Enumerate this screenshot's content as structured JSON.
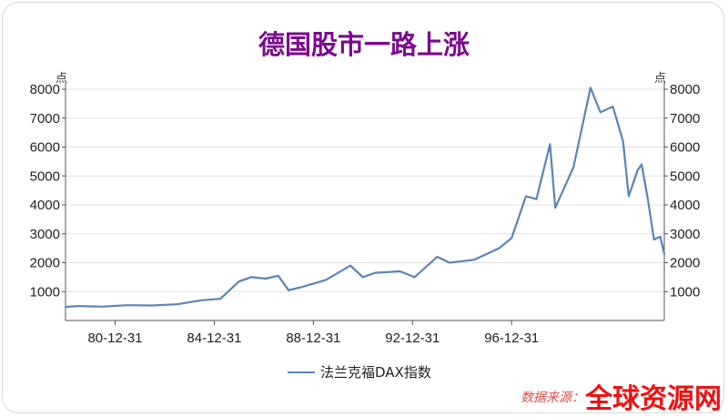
{
  "chart_data": {
    "type": "line",
    "title": "德国股市一路上涨",
    "y_unit_label": "点",
    "ylim": [
      0,
      8000
    ],
    "yticks": [
      1000,
      2000,
      3000,
      4000,
      5000,
      6000,
      7000,
      8000
    ],
    "xlim": [
      "1978-12-31",
      "2003-02-28"
    ],
    "xticks": [
      "80-12-31",
      "84-12-31",
      "88-12-31",
      "92-12-31",
      "96-12-31"
    ],
    "grid": "horizontal",
    "legend_position": "bottom",
    "series": [
      {
        "name": "法兰克福DAX指数",
        "color": "#5b84b8",
        "x": [
          "1978-12-31",
          "1979-06-30",
          "1980-06-30",
          "1981-06-30",
          "1982-06-30",
          "1983-06-30",
          "1984-06-30",
          "1985-03-31",
          "1985-12-31",
          "1986-06-30",
          "1987-01-31",
          "1987-07-31",
          "1987-12-31",
          "1988-06-30",
          "1989-06-30",
          "1990-06-30",
          "1990-12-31",
          "1991-06-30",
          "1992-06-30",
          "1993-01-31",
          "1993-12-31",
          "1994-06-30",
          "1995-06-30",
          "1996-06-30",
          "1996-12-31",
          "1997-07-31",
          "1997-12-31",
          "1998-07-20",
          "1998-10-05",
          "1999-06-30",
          "2000-03-07",
          "2000-07-31",
          "2001-01-31",
          "2001-06-30",
          "2001-09-21",
          "2002-01-31",
          "2002-03-31",
          "2002-06-30",
          "2002-09-30",
          "2002-12-31",
          "2003-02-28"
        ],
        "values": [
          470,
          500,
          480,
          530,
          520,
          560,
          700,
          750,
          1350,
          1500,
          1450,
          1550,
          1050,
          1150,
          1400,
          1900,
          1500,
          1650,
          1700,
          1500,
          2200,
          2000,
          2100,
          2500,
          2850,
          4300,
          4200,
          6100,
          3900,
          5300,
          8050,
          7200,
          7400,
          6200,
          4300,
          5200,
          5400,
          4200,
          2800,
          2900,
          2300
        ]
      }
    ]
  },
  "legend": {
    "label": "法兰克福DAX指数"
  },
  "source": {
    "label": "数据来源："
  },
  "watermark": {
    "text": "全球资源网"
  }
}
